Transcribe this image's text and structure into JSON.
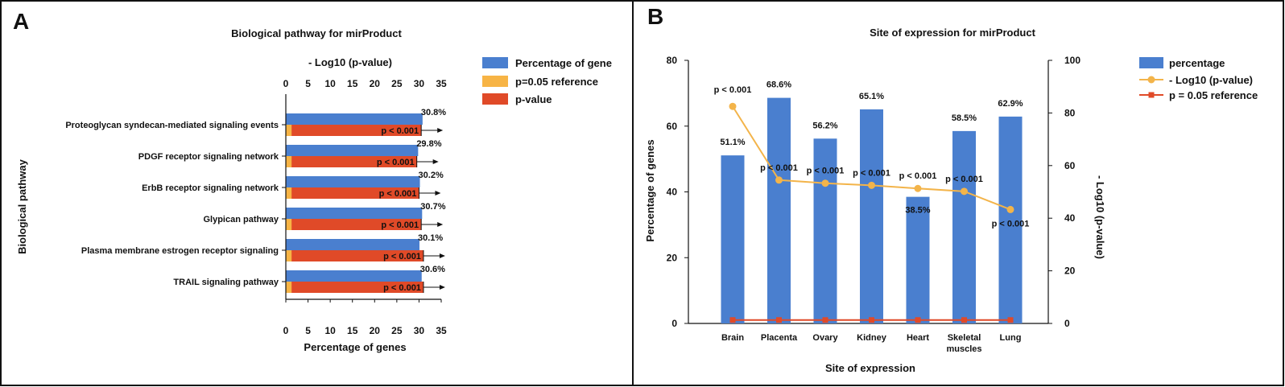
{
  "colors": {
    "blue": "#4A7FCF",
    "orange": "#F7B445",
    "red": "#E04A28",
    "line_orange": "#F3B44A",
    "border": "#111111"
  },
  "chart_data": [
    {
      "panel": "A",
      "type": "bar",
      "orientation": "horizontal",
      "title": "Biological pathway for mirProduct",
      "top_axis_title": "- Log10 (p-value)",
      "xlabel": "Percentage of genes",
      "ylabel": "Biological pathway",
      "xlim": [
        0,
        35
      ],
      "ticks": [
        0,
        5,
        10,
        15,
        20,
        25,
        30,
        35
      ],
      "categories": [
        "Proteoglycan syndecan-mediated signaling events",
        "PDGF receptor signaling network",
        "ErbB receptor signaling network",
        "Glypican pathway",
        "Plasma membrane estrogen receptor signaling",
        "TRAIL signaling pathway"
      ],
      "series": [
        {
          "name": "Percentage of gene",
          "values": [
            30.8,
            29.8,
            30.2,
            30.7,
            30.1,
            30.6
          ],
          "labels": [
            "30.8%",
            "29.8%",
            "30.2%",
            "30.7%",
            "30.1%",
            "30.6%"
          ]
        },
        {
          "name": "p=0.05 reference",
          "values": [
            1.3,
            1.3,
            1.3,
            1.3,
            1.3,
            1.3
          ]
        },
        {
          "name": "p-value",
          "values": [
            30.5,
            29.5,
            30.0,
            30.5,
            31.0,
            31.0
          ],
          "labels": [
            "p < 0.001",
            "p < 0.001",
            "p < 0.001",
            "p < 0.001",
            "p < 0.001",
            "p < 0.001"
          ]
        }
      ],
      "legend_position": "right"
    },
    {
      "panel": "B",
      "type": "bar+line",
      "title": "Site of expression for mirProduct",
      "xlabel": "Site of expression",
      "ylabel": "Percentage of genes",
      "y2label": "- Log10 (p-value)",
      "ylim": [
        0,
        80
      ],
      "yticks": [
        0,
        20,
        40,
        60,
        80
      ],
      "y2lim": [
        0,
        100
      ],
      "y2ticks": [
        0,
        20,
        40,
        60,
        80,
        100
      ],
      "categories": [
        "Brain",
        "Placenta",
        "Ovary",
        "Kidney",
        "Heart",
        "Skeletal muscles",
        "Lung"
      ],
      "category_lines": [
        [
          "Brain"
        ],
        [
          "Placenta"
        ],
        [
          "Ovary"
        ],
        [
          "Kidney"
        ],
        [
          "Heart"
        ],
        [
          "Skeletal",
          "muscles"
        ],
        [
          "Lung"
        ]
      ],
      "series": [
        {
          "name": "percentage",
          "type": "bar",
          "values": [
            51.1,
            68.6,
            56.2,
            65.1,
            38.5,
            58.5,
            62.9
          ],
          "labels": [
            "51.1%",
            "68.6%",
            "56.2%",
            "65.1%",
            "38.5%",
            "58.5%",
            "62.9%"
          ]
        },
        {
          "name": "- Log10 (p-value)",
          "type": "line",
          "axis": "right",
          "values": [
            82.5,
            54.5,
            53.3,
            52.5,
            51.3,
            50.2,
            43.3
          ],
          "labels": [
            "p < 0.001",
            "p < 0.001",
            "p < 0.001",
            "p < 0.001",
            "p < 0.001",
            "p < 0.001",
            "p < 0.001"
          ]
        },
        {
          "name": "p = 0.05 reference",
          "type": "line",
          "axis": "right",
          "values": [
            1.3,
            1.3,
            1.3,
            1.3,
            1.3,
            1.3,
            1.3
          ]
        }
      ],
      "legend_position": "right"
    }
  ]
}
